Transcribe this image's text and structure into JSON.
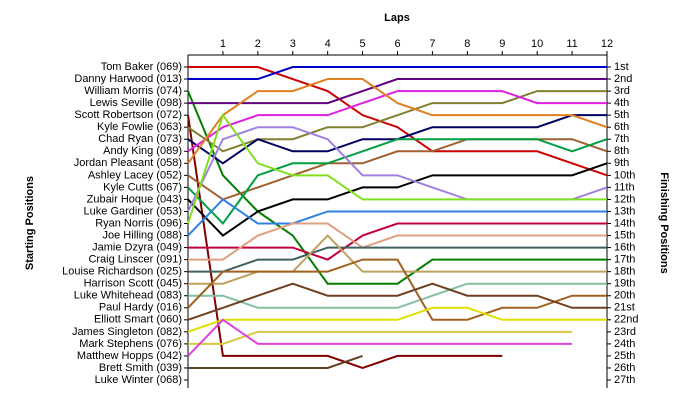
{
  "chart_data": {
    "type": "line",
    "title": "Laps",
    "y_label_left": "Starting Positions",
    "y_label_right": "Finishing Positions",
    "x": [
      0,
      1,
      2,
      3,
      4,
      5,
      6,
      7,
      8,
      9,
      10,
      11,
      12
    ],
    "xlim": [
      0,
      12
    ],
    "xticks": [
      1,
      2,
      3,
      4,
      5,
      6,
      7,
      8,
      9,
      10,
      11,
      12
    ],
    "ylim": [
      1,
      27
    ],
    "y_inverted": true,
    "yticks": [
      {
        "value": 1,
        "label": "1st"
      },
      {
        "value": 2,
        "label": "2nd"
      },
      {
        "value": 3,
        "label": "3rd"
      },
      {
        "value": 4,
        "label": "4th"
      },
      {
        "value": 5,
        "label": "5th"
      },
      {
        "value": 6,
        "label": "6th"
      },
      {
        "value": 7,
        "label": "7th"
      },
      {
        "value": 8,
        "label": "8th"
      },
      {
        "value": 9,
        "label": "9th"
      },
      {
        "value": 10,
        "label": "10th"
      },
      {
        "value": 11,
        "label": "11th"
      },
      {
        "value": 12,
        "label": "12th"
      },
      {
        "value": 13,
        "label": "13th"
      },
      {
        "value": 14,
        "label": "14th"
      },
      {
        "value": 15,
        "label": "15th"
      },
      {
        "value": 16,
        "label": "16th"
      },
      {
        "value": 17,
        "label": "17th"
      },
      {
        "value": 18,
        "label": "18th"
      },
      {
        "value": 19,
        "label": "19th"
      },
      {
        "value": 20,
        "label": "20th"
      },
      {
        "value": 21,
        "label": "21st"
      },
      {
        "value": 22,
        "label": "22nd"
      },
      {
        "value": 23,
        "label": "23rd"
      },
      {
        "value": 24,
        "label": "24th"
      },
      {
        "value": 25,
        "label": "25th"
      },
      {
        "value": 26,
        "label": "26th"
      },
      {
        "value": 27,
        "label": "27th"
      }
    ],
    "series": [
      {
        "name": "Tom Baker (069)",
        "color": "#d00000",
        "values": [
          1,
          1,
          1,
          2,
          3,
          5,
          6,
          8,
          8,
          8,
          8,
          9,
          10
        ]
      },
      {
        "name": "Danny Harwood (013)",
        "color": "#0000c8",
        "values": [
          2,
          2,
          2,
          1,
          1,
          1,
          1,
          1,
          1,
          1,
          1,
          1,
          1
        ]
      },
      {
        "name": "William Morris (074)",
        "color": "#008000",
        "values": [
          3,
          10,
          13,
          15,
          19,
          19,
          19,
          17,
          17,
          17,
          17,
          17,
          17
        ]
      },
      {
        "name": "Lewis Seville (098)",
        "color": "#600080",
        "values": [
          4,
          4,
          4,
          4,
          4,
          3,
          2,
          2,
          2,
          2,
          2,
          2,
          2
        ]
      },
      {
        "name": "Scott Robertson (072)",
        "color": "#800000",
        "values": [
          5,
          25,
          25,
          25,
          25,
          26,
          25,
          25,
          25,
          25,
          null,
          null,
          null
        ]
      },
      {
        "name": "Kyle Fowlie (063)",
        "color": "#808030",
        "values": [
          6,
          8,
          7,
          7,
          6,
          6,
          5,
          4,
          4,
          4,
          3,
          3,
          3
        ]
      },
      {
        "name": "Chad Ryan (073)",
        "color": "#000060",
        "values": [
          7,
          9,
          7,
          8,
          8,
          7,
          7,
          6,
          6,
          6,
          6,
          5,
          5
        ]
      },
      {
        "name": "Andy King (089)",
        "color": "#e020e0",
        "values": [
          8,
          6,
          5,
          5,
          5,
          4,
          3,
          3,
          3,
          3,
          4,
          4,
          4
        ]
      },
      {
        "name": "Jordan Pleasant (058)",
        "color": "#e08020",
        "values": [
          9,
          5,
          3,
          3,
          2,
          2,
          4,
          5,
          5,
          5,
          5,
          5,
          6
        ]
      },
      {
        "name": "Ashley Lacey (052)",
        "color": "#a06030",
        "values": [
          10,
          12,
          11,
          10,
          9,
          9,
          8,
          8,
          7,
          7,
          7,
          7,
          8
        ]
      },
      {
        "name": "Kyle Cutts (067)",
        "color": "#00a040",
        "values": [
          11,
          14,
          10,
          9,
          9,
          8,
          7,
          7,
          7,
          7,
          7,
          8,
          7
        ]
      },
      {
        "name": "Zubair Hoque (043)",
        "color": "#000000",
        "values": [
          12,
          15,
          13,
          12,
          12,
          11,
          11,
          10,
          10,
          10,
          10,
          10,
          9
        ]
      },
      {
        "name": "Luke Gardiner (053)",
        "color": "#a080e0",
        "values": [
          13,
          7,
          6,
          6,
          7,
          10,
          10,
          11,
          12,
          12,
          12,
          12,
          11
        ]
      },
      {
        "name": "Ryan Norris (096)",
        "color": "#80e020",
        "values": [
          14,
          5,
          9,
          10,
          10,
          12,
          12,
          12,
          12,
          12,
          12,
          12,
          12
        ]
      },
      {
        "name": "Joe Hilling (088)",
        "color": "#3080e0",
        "values": [
          15,
          12,
          14,
          14,
          13,
          13,
          13,
          13,
          13,
          13,
          13,
          13,
          13
        ]
      },
      {
        "name": "Jamie Dzyra (049)",
        "color": "#c00040",
        "values": [
          16,
          16,
          16,
          16,
          17,
          15,
          14,
          14,
          14,
          14,
          14,
          14,
          14
        ]
      },
      {
        "name": "Craig Linscer (091)",
        "color": "#e0a080",
        "values": [
          17,
          17,
          15,
          14,
          14,
          16,
          15,
          15,
          15,
          15,
          15,
          15,
          15
        ]
      },
      {
        "name": "Louise Richardson (025)",
        "color": "#406060",
        "values": [
          18,
          18,
          17,
          17,
          16,
          16,
          16,
          16,
          16,
          16,
          16,
          16,
          16
        ]
      },
      {
        "name": "Harrison Scott (045)",
        "color": "#c0a060",
        "values": [
          19,
          19,
          18,
          18,
          15,
          18,
          18,
          18,
          18,
          18,
          18,
          18,
          18
        ]
      },
      {
        "name": "Luke Whitehead (083)",
        "color": "#80c0a0",
        "values": [
          20,
          20,
          21,
          21,
          21,
          21,
          21,
          20,
          19,
          19,
          19,
          19,
          19
        ]
      },
      {
        "name": "Paul Hardy (016)",
        "color": "#a06020",
        "values": [
          21,
          18,
          18,
          18,
          18,
          17,
          17,
          22,
          22,
          21,
          21,
          20,
          20
        ]
      },
      {
        "name": "Elliott Smart (060)",
        "color": "#704020",
        "values": [
          22,
          21,
          20,
          19,
          20,
          20,
          20,
          19,
          20,
          20,
          20,
          21,
          21
        ]
      },
      {
        "name": "James Singleton (082)",
        "color": "#e0e000",
        "values": [
          23,
          22,
          22,
          22,
          22,
          22,
          22,
          21,
          21,
          22,
          22,
          22,
          22
        ]
      },
      {
        "name": "Mark Stephens (076)",
        "color": "#d8c840",
        "values": [
          24,
          24,
          23,
          23,
          23,
          23,
          23,
          23,
          23,
          23,
          23,
          23,
          null
        ]
      },
      {
        "name": "Matthew Hopps (042)",
        "color": "#e040e0",
        "values": [
          25,
          22,
          24,
          24,
          24,
          24,
          24,
          24,
          24,
          24,
          24,
          24,
          null
        ]
      },
      {
        "name": "Brett Smith (039)",
        "color": "#604020",
        "values": [
          26,
          26,
          26,
          26,
          26,
          25,
          null,
          null,
          null,
          null,
          null,
          null,
          null
        ]
      },
      {
        "name": "Luke Winter (068)",
        "color": "#808080",
        "values": [
          27,
          null,
          null,
          null,
          null,
          null,
          null,
          null,
          null,
          null,
          null,
          null,
          null
        ]
      }
    ]
  }
}
